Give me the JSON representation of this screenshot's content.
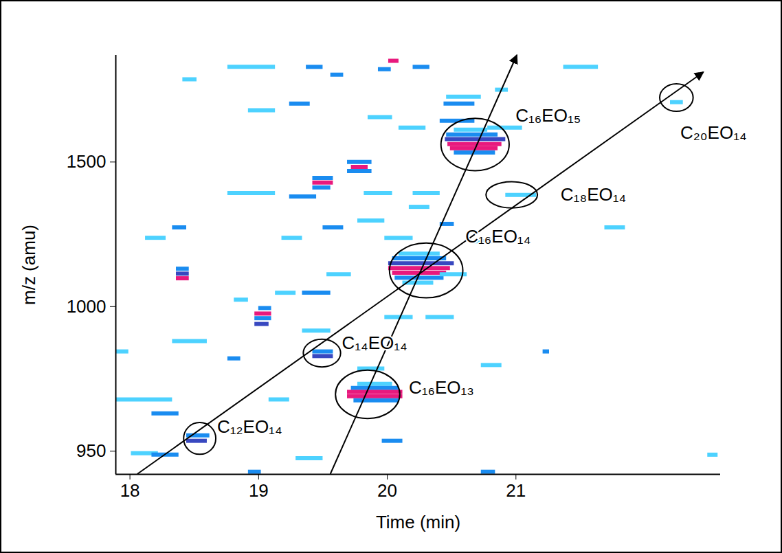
{
  "chart_data": {
    "type": "heatmap",
    "x_label": "Time (min)",
    "y_label": "m/z (amu)",
    "xlim": [
      17.89,
      22.59
    ],
    "xticks": [
      18,
      19,
      20,
      21
    ],
    "ylim": [
      942,
      1869
    ],
    "yticks": [
      950,
      1000,
      1500
    ],
    "cells": [
      {
        "x1": 20.01,
        "x2": 20.09,
        "y": 1850,
        "color": "#e8197d"
      },
      {
        "x1": 19.93,
        "x2": 20.03,
        "y": 1821,
        "color": "#1a8cf0"
      },
      {
        "x1": 18.76,
        "x2": 19.13,
        "y": 1829,
        "color": "#4dd2ff"
      },
      {
        "x1": 19.37,
        "x2": 19.5,
        "y": 1829,
        "color": "#1a8cf0"
      },
      {
        "x1": 20.2,
        "x2": 20.33,
        "y": 1829,
        "color": "#1a8cf0"
      },
      {
        "x1": 21.37,
        "x2": 21.64,
        "y": 1829,
        "color": "#4dd2ff"
      },
      {
        "x1": 18.41,
        "x2": 18.52,
        "y": 1786,
        "color": "#4dd2ff"
      },
      {
        "x1": 19.56,
        "x2": 19.66,
        "y": 1802,
        "color": "#1a8cf0"
      },
      {
        "x1": 20.46,
        "x2": 20.73,
        "y": 1726,
        "color": "#4dd2ff"
      },
      {
        "x1": 20.84,
        "x2": 20.94,
        "y": 1750,
        "color": "#4dd2ff"
      },
      {
        "x1": 20.44,
        "x2": 20.68,
        "y": 1702,
        "color": "#1a8cf0"
      },
      {
        "x1": 22.2,
        "x2": 22.3,
        "y": 1707,
        "color": "#4dd2ff"
      },
      {
        "x1": 19.24,
        "x2": 19.4,
        "y": 1702,
        "color": "#1a8cf0"
      },
      {
        "x1": 18.92,
        "x2": 19.13,
        "y": 1679,
        "color": "#4dd2ff"
      },
      {
        "x1": 19.85,
        "x2": 20.04,
        "y": 1655,
        "color": "#4dd2ff"
      },
      {
        "x1": 20.41,
        "x2": 20.68,
        "y": 1643,
        "color": "#1a8cf0"
      },
      {
        "x1": 20.78,
        "x2": 21.05,
        "y": 1619,
        "color": "#4dd2ff"
      },
      {
        "x1": 20.09,
        "x2": 20.3,
        "y": 1619,
        "color": "#4dd2ff"
      },
      {
        "x1": 20.52,
        "x2": 20.78,
        "y": 1612,
        "color": "#4dd2ff"
      },
      {
        "x1": 20.46,
        "x2": 20.86,
        "y": 1595,
        "color": "#1a8cf0"
      },
      {
        "x1": 20.45,
        "x2": 20.92,
        "y": 1579,
        "color": "#3848c0"
      },
      {
        "x1": 20.47,
        "x2": 20.89,
        "y": 1562,
        "color": "#e8197d"
      },
      {
        "x1": 20.49,
        "x2": 20.86,
        "y": 1548,
        "color": "#e8197d"
      },
      {
        "x1": 20.52,
        "x2": 20.84,
        "y": 1533,
        "color": "#1a8cf0"
      },
      {
        "x1": 19.69,
        "x2": 19.88,
        "y": 1500,
        "color": "#1a8cf0"
      },
      {
        "x1": 19.72,
        "x2": 19.85,
        "y": 1483,
        "color": "#e8197d"
      },
      {
        "x1": 19.69,
        "x2": 19.88,
        "y": 1469,
        "color": "#1a8cf0"
      },
      {
        "x1": 19.42,
        "x2": 19.58,
        "y": 1445,
        "color": "#1a8cf0"
      },
      {
        "x1": 19.42,
        "x2": 19.58,
        "y": 1429,
        "color": "#e8197d"
      },
      {
        "x1": 19.42,
        "x2": 19.56,
        "y": 1412,
        "color": "#1a8cf0"
      },
      {
        "x1": 18.76,
        "x2": 19.13,
        "y": 1393,
        "color": "#4dd2ff"
      },
      {
        "x1": 19.24,
        "x2": 19.45,
        "y": 1381,
        "color": "#1a8cf0"
      },
      {
        "x1": 19.82,
        "x2": 20.04,
        "y": 1393,
        "color": "#4dd2ff"
      },
      {
        "x1": 20.2,
        "x2": 20.41,
        "y": 1393,
        "color": "#4dd2ff"
      },
      {
        "x1": 20.92,
        "x2": 21.16,
        "y": 1386,
        "color": "#4dd2ff"
      },
      {
        "x1": 20.17,
        "x2": 20.33,
        "y": 1345,
        "color": "#4dd2ff"
      },
      {
        "x1": 19.77,
        "x2": 19.98,
        "y": 1298,
        "color": "#4dd2ff"
      },
      {
        "x1": 18.33,
        "x2": 18.44,
        "y": 1274,
        "color": "#1a8cf0"
      },
      {
        "x1": 19.5,
        "x2": 19.66,
        "y": 1274,
        "color": "#1a8cf0"
      },
      {
        "x1": 20.41,
        "x2": 20.52,
        "y": 1286,
        "color": "#1a8cf0"
      },
      {
        "x1": 18.12,
        "x2": 18.28,
        "y": 1238,
        "color": "#4dd2ff"
      },
      {
        "x1": 19.18,
        "x2": 19.34,
        "y": 1238,
        "color": "#4dd2ff"
      },
      {
        "x1": 19.98,
        "x2": 20.2,
        "y": 1238,
        "color": "#4dd2ff"
      },
      {
        "x1": 20.68,
        "x2": 20.84,
        "y": 1226,
        "color": "#4dd2ff"
      },
      {
        "x1": 21.69,
        "x2": 21.85,
        "y": 1274,
        "color": "#4dd2ff"
      },
      {
        "x1": 20.09,
        "x2": 20.41,
        "y": 1183,
        "color": "#4dd2ff"
      },
      {
        "x1": 20.04,
        "x2": 20.46,
        "y": 1167,
        "color": "#1a8cf0"
      },
      {
        "x1": 20.01,
        "x2": 20.52,
        "y": 1150,
        "color": "#3848c0"
      },
      {
        "x1": 20.01,
        "x2": 20.49,
        "y": 1133,
        "color": "#e8197d"
      },
      {
        "x1": 20.04,
        "x2": 20.46,
        "y": 1117,
        "color": "#e8197d"
      },
      {
        "x1": 20.06,
        "x2": 20.44,
        "y": 1100,
        "color": "#1a8cf0"
      },
      {
        "x1": 20.12,
        "x2": 20.36,
        "y": 1083,
        "color": "#4dd2ff"
      },
      {
        "x1": 18.36,
        "x2": 18.46,
        "y": 1131,
        "color": "#1a8cf0"
      },
      {
        "x1": 18.36,
        "x2": 18.46,
        "y": 1114,
        "color": "#3848c0"
      },
      {
        "x1": 18.36,
        "x2": 18.46,
        "y": 1098,
        "color": "#e8197d"
      },
      {
        "x1": 20.41,
        "x2": 20.62,
        "y": 1112,
        "color": "#4dd2ff"
      },
      {
        "x1": 19.53,
        "x2": 19.72,
        "y": 1112,
        "color": "#4dd2ff"
      },
      {
        "x1": 19.13,
        "x2": 19.29,
        "y": 1048,
        "color": "#4dd2ff"
      },
      {
        "x1": 19.34,
        "x2": 19.56,
        "y": 1048,
        "color": "#1a8cf0"
      },
      {
        "x1": 18.81,
        "x2": 18.92,
        "y": 1024,
        "color": "#4dd2ff"
      },
      {
        "x1": 19.0,
        "x2": 19.1,
        "y": 999.5,
        "color": "#1a8cf0"
      },
      {
        "x1": 18.97,
        "x2": 19.1,
        "y": 997.6,
        "color": "#e8197d"
      },
      {
        "x1": 18.97,
        "x2": 19.1,
        "y": 996.0,
        "color": "#1a8cf0"
      },
      {
        "x1": 18.97,
        "x2": 19.08,
        "y": 994.0,
        "color": "#3848c0"
      },
      {
        "x1": 19.98,
        "x2": 20.2,
        "y": 996.4,
        "color": "#4dd2ff"
      },
      {
        "x1": 20.3,
        "x2": 20.52,
        "y": 996.4,
        "color": "#4dd2ff"
      },
      {
        "x1": 19.34,
        "x2": 19.56,
        "y": 991.7,
        "color": "#4dd2ff"
      },
      {
        "x1": 17.89,
        "x2": 17.99,
        "y": 984.5,
        "color": "#4dd2ff"
      },
      {
        "x1": 18.33,
        "x2": 18.6,
        "y": 988.1,
        "color": "#4dd2ff"
      },
      {
        "x1": 18.76,
        "x2": 18.86,
        "y": 982.1,
        "color": "#1a8cf0"
      },
      {
        "x1": 19.42,
        "x2": 19.58,
        "y": 984.5,
        "color": "#1a8cf0"
      },
      {
        "x1": 19.42,
        "x2": 19.58,
        "y": 982.9,
        "color": "#3848c0"
      },
      {
        "x1": 21.21,
        "x2": 21.26,
        "y": 984.5,
        "color": "#1a8cf0"
      },
      {
        "x1": 19.77,
        "x2": 19.98,
        "y": 978.6,
        "color": "#4dd2ff"
      },
      {
        "x1": 20.73,
        "x2": 20.89,
        "y": 979.8,
        "color": "#4dd2ff"
      },
      {
        "x1": 19.77,
        "x2": 20.04,
        "y": 973.3,
        "color": "#4dd2ff"
      },
      {
        "x1": 19.72,
        "x2": 20.09,
        "y": 971.9,
        "color": "#1a8cf0"
      },
      {
        "x1": 19.69,
        "x2": 20.12,
        "y": 970.5,
        "color": "#e8197d"
      },
      {
        "x1": 19.69,
        "x2": 20.12,
        "y": 969.0,
        "color": "#e8197d"
      },
      {
        "x1": 19.74,
        "x2": 20.09,
        "y": 967.6,
        "color": "#1a8cf0"
      },
      {
        "x1": 17.89,
        "x2": 18.33,
        "y": 967.9,
        "color": "#4dd2ff"
      },
      {
        "x1": 18.17,
        "x2": 18.38,
        "y": 963.1,
        "color": "#1a8cf0"
      },
      {
        "x1": 19.08,
        "x2": 19.24,
        "y": 967.9,
        "color": "#4dd2ff"
      },
      {
        "x1": 19.96,
        "x2": 20.12,
        "y": 953.6,
        "color": "#1a8cf0"
      },
      {
        "x1": 18.44,
        "x2": 18.62,
        "y": 955.5,
        "color": "#1a8cf0"
      },
      {
        "x1": 18.44,
        "x2": 18.6,
        "y": 953.6,
        "color": "#3848c0"
      },
      {
        "x1": 18.01,
        "x2": 18.22,
        "y": 949.3,
        "color": "#4dd2ff"
      },
      {
        "x1": 18.17,
        "x2": 18.38,
        "y": 948.8,
        "color": "#1a8cf0"
      },
      {
        "x1": 19.29,
        "x2": 19.5,
        "y": 947.6,
        "color": "#4dd2ff"
      },
      {
        "x1": 18.92,
        "x2": 19.02,
        "y": 942.9,
        "color": "#1a8cf0"
      },
      {
        "x1": 20.73,
        "x2": 20.84,
        "y": 942.9,
        "color": "#1a8cf0"
      },
      {
        "x1": 22.49,
        "x2": 22.57,
        "y": 948.8,
        "color": "#4dd2ff"
      }
    ],
    "annotations": [
      {
        "text": "C₁₂EO₁₄",
        "x": 18.68,
        "y": 957.9,
        "x1": 18.42,
        "x2": 18.67,
        "y1": 948.8,
        "y2": 959.8
      },
      {
        "text": "C₁₄EO₁₄",
        "x": 19.65,
        "y": 986.9,
        "x1": 19.35,
        "x2": 19.64,
        "y1": 979.0,
        "y2": 988.6
      },
      {
        "text": "C₁₆EO₁₃",
        "x": 20.17,
        "y": 971.4,
        "x1": 19.6,
        "x2": 20.1,
        "y1": 961.2,
        "y2": 977.9
      },
      {
        "text": "C₁₆EO₁₄",
        "x": 20.61,
        "y": 1238,
        "x1": 20.02,
        "x2": 20.59,
        "y1": 1029,
        "y2": 1219
      },
      {
        "text": "C₁₈EO₁₄",
        "x": 21.35,
        "y": 1381,
        "x1": 20.77,
        "x2": 21.17,
        "y1": 1340,
        "y2": 1431
      },
      {
        "text": "C₁₆EO₁₅",
        "x": 21.0,
        "y": 1655,
        "x1": 20.42,
        "x2": 20.95,
        "y1": 1469,
        "y2": 1650
      },
      {
        "text": "C₂₀EO₁₄",
        "x": 22.28,
        "y": 1595,
        "x1": 22.12,
        "x2": 22.38,
        "y1": 1674,
        "y2": 1769
      }
    ],
    "arrows": [
      {
        "x": [
          18.06,
          22.46
        ],
        "y": [
          942,
          1810
        ]
      },
      {
        "x": [
          19.56,
          21.01
        ],
        "y": [
          942,
          1869
        ]
      }
    ]
  }
}
